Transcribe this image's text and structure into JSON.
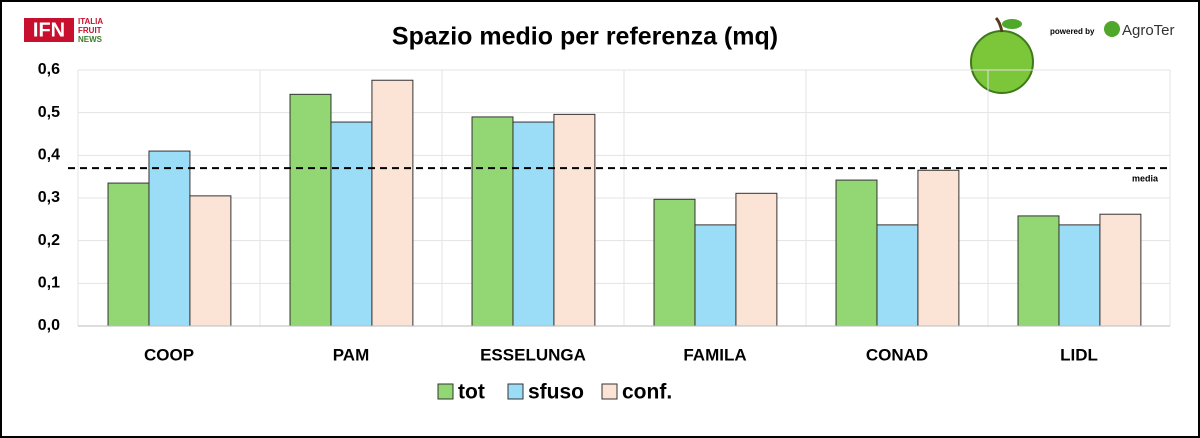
{
  "chart_data": {
    "type": "bar",
    "title": "Spazio medio per referenza (mq)",
    "categories": [
      "COOP",
      "PAM",
      "ESSELUNGA",
      "FAMILA",
      "CONAD",
      "LIDL"
    ],
    "series": [
      {
        "name": "tot",
        "color": "#92d774",
        "values": [
          0.335,
          0.543,
          0.49,
          0.297,
          0.342,
          0.258
        ]
      },
      {
        "name": "sfuso",
        "color": "#9bdcf6",
        "values": [
          0.41,
          0.478,
          0.478,
          0.237,
          0.237,
          0.237
        ]
      },
      {
        "name": "conf.",
        "color": "#fbe3d6",
        "values": [
          0.305,
          0.576,
          0.496,
          0.311,
          0.365,
          0.262
        ]
      }
    ],
    "ylim": [
      0,
      0.6
    ],
    "yticks": [
      {
        "value": 0,
        "label": "0,0"
      },
      {
        "value": 0.1,
        "label": "0,1"
      },
      {
        "value": 0.2,
        "label": "0,2"
      },
      {
        "value": 0.3,
        "label": "0,3"
      },
      {
        "value": 0.4,
        "label": "0,4"
      },
      {
        "value": 0.5,
        "label": "0,5"
      },
      {
        "value": 0.6,
        "label": "0,6"
      }
    ],
    "grid": true,
    "reference_line": {
      "value": 0.37,
      "label": "media"
    },
    "legend": "bottom",
    "logo_texts": [
      "IFN",
      "ITALIA",
      "FRUIT",
      "NEWS",
      "powered by",
      "AgroTer"
    ]
  }
}
